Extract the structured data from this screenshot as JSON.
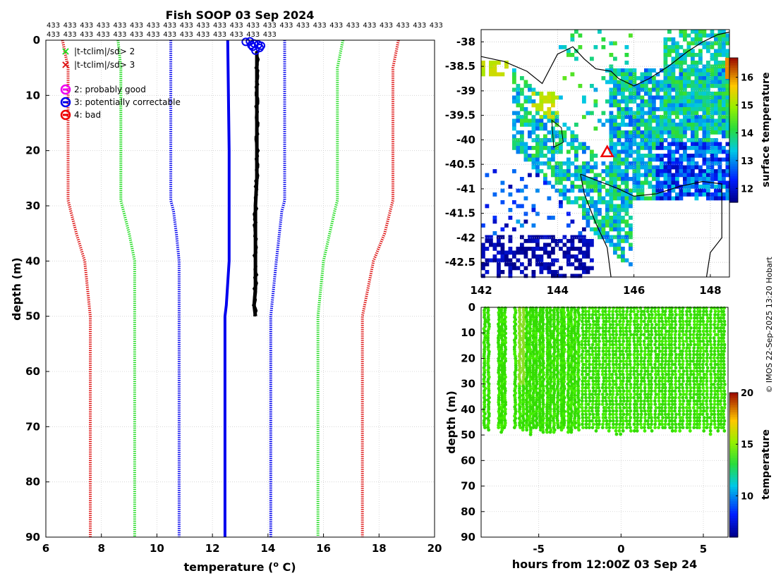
{
  "title": "Fish SOOP 03 Sep 2024",
  "count_rows": [
    [
      "433",
      "433",
      "433",
      "433",
      "433",
      "433",
      "433",
      "433",
      "433",
      "433",
      "433",
      "433",
      "433",
      "433",
      "433",
      "433",
      "433",
      "433",
      "433",
      "433",
      "433",
      "433",
      "433",
      "433"
    ],
    [
      "433",
      "433",
      "433",
      "433",
      "433",
      "433",
      "433",
      "433",
      "433",
      "433",
      "433",
      "433",
      "433",
      "433"
    ]
  ],
  "watermark": "© IMOS 22-Sep-2025 13:20 Hobart",
  "colors": {
    "green_env": "#22dd22",
    "red_env": "#dd1111",
    "blue_env": "#0000ee",
    "profile": "#000000",
    "scatter": "#33ee00"
  },
  "chart_data": [
    {
      "type": "line",
      "name": "temperature profile",
      "title": "Fish SOOP 03 Sep 2024",
      "xlabel": "temperature (",
      "xlabel_sup": "o",
      "xlabel_end": " C)",
      "ylabel": "depth (m)",
      "xlim": [
        6,
        20
      ],
      "ylim": [
        90,
        0
      ],
      "xticks": [
        6,
        8,
        10,
        12,
        14,
        16,
        18,
        20
      ],
      "yticks": [
        0,
        10,
        20,
        30,
        40,
        50,
        60,
        70,
        80,
        90
      ],
      "grid": true,
      "series": [
        {
          "name": "clim -3sd",
          "color": "#dd1111",
          "style": "dotted",
          "depth": [
            0,
            5,
            29,
            31,
            35,
            40,
            50,
            90
          ],
          "temp": [
            6.6,
            6.8,
            6.8,
            6.9,
            7.1,
            7.4,
            7.6,
            7.6
          ]
        },
        {
          "name": "clim -2sd",
          "color": "#22dd22",
          "style": "dotted",
          "depth": [
            0,
            5,
            29,
            31,
            35,
            40,
            50,
            90
          ],
          "temp": [
            8.6,
            8.7,
            8.7,
            8.8,
            9.0,
            9.2,
            9.2,
            9.2
          ]
        },
        {
          "name": "clim -1sd",
          "color": "#0000ee",
          "style": "dotted",
          "depth": [
            0,
            5,
            29,
            31,
            35,
            40,
            50,
            90
          ],
          "temp": [
            10.5,
            10.5,
            10.5,
            10.6,
            10.7,
            10.8,
            10.8,
            10.8
          ]
        },
        {
          "name": "clim mean",
          "color": "#0000ee",
          "style": "solid",
          "depth": [
            0,
            20,
            27,
            30,
            40,
            48,
            50,
            90
          ],
          "temp": [
            12.55,
            12.6,
            12.6,
            12.6,
            12.6,
            12.5,
            12.45,
            12.45
          ]
        },
        {
          "name": "clim +1sd",
          "color": "#0000ee",
          "style": "dotted",
          "depth": [
            0,
            5,
            29,
            31,
            40,
            50,
            90
          ],
          "temp": [
            14.6,
            14.6,
            14.6,
            14.5,
            14.3,
            14.1,
            14.1
          ]
        },
        {
          "name": "clim +2sd",
          "color": "#22dd22",
          "style": "dotted",
          "depth": [
            0,
            5,
            29,
            31,
            40,
            50,
            90
          ],
          "temp": [
            16.7,
            16.5,
            16.5,
            16.4,
            16.0,
            15.8,
            15.8
          ]
        },
        {
          "name": "clim +3sd",
          "color": "#dd1111",
          "style": "dotted",
          "depth": [
            0,
            5,
            29,
            31,
            35,
            40,
            50,
            90
          ],
          "temp": [
            18.7,
            18.5,
            18.5,
            18.4,
            18.2,
            17.8,
            17.4,
            17.4
          ]
        },
        {
          "name": "observed profile",
          "color": "#000000",
          "style": "thick",
          "depth": [
            2,
            10,
            20,
            25,
            30,
            35,
            40,
            45,
            48,
            50
          ],
          "temp": [
            13.6,
            13.6,
            13.6,
            13.6,
            13.55,
            13.55,
            13.55,
            13.55,
            13.5,
            13.55
          ]
        }
      ],
      "flag_markers": {
        "flag": "3: potentially correctable",
        "points": [
          [
            13.2,
            0.3
          ],
          [
            13.35,
            0.2
          ],
          [
            13.5,
            0.6
          ],
          [
            13.65,
            0.8
          ],
          [
            13.45,
            1.2
          ],
          [
            13.7,
            1.4
          ],
          [
            13.55,
            1.9
          ],
          [
            13.4,
            0.9
          ],
          [
            13.75,
            1.0
          ]
        ]
      },
      "legend": {
        "position": "top-left",
        "entries": [
          {
            "label": "|t-tclim|/sd> 2",
            "marker": "x",
            "color": "#22dd22"
          },
          {
            "label": "|t-tclim|/sd> 3",
            "marker": "x",
            "color": "#dd1111"
          },
          {
            "label": "2: probably good",
            "marker": "circle",
            "color": "#ee00ee"
          },
          {
            "label": "3: potentially correctable",
            "marker": "circle",
            "color": "#0000ee"
          },
          {
            "label": "4: bad",
            "marker": "circle",
            "color": "#ee0000"
          }
        ]
      }
    },
    {
      "type": "heatmap",
      "name": "surface temperature map",
      "xlim": [
        142,
        148.5
      ],
      "ylim": [
        -42.8,
        -37.75
      ],
      "xticks": [
        142,
        144,
        146,
        148
      ],
      "yticks": [
        -38,
        -38.5,
        -39,
        -39.5,
        -40,
        -40.5,
        -41,
        -41.5,
        -42,
        -42.5
      ],
      "colorbar_label": "surface temperature",
      "colorbar_ticks": [
        12,
        13,
        14,
        15,
        16
      ],
      "colorbar_range": [
        11.5,
        16.7
      ],
      "marker": {
        "lon": 145.3,
        "lat": -40.25,
        "shape": "triangle",
        "color": "#ee0000"
      }
    },
    {
      "type": "scatter",
      "name": "depth time section",
      "xlabel": "hours from 12:00Z 03 Sep 24",
      "ylabel": "depth (m)",
      "xlim": [
        -8.5,
        6.5
      ],
      "ylim": [
        90,
        0
      ],
      "xticks": [
        -5,
        0,
        5
      ],
      "yticks": [
        0,
        10,
        20,
        30,
        40,
        50,
        60,
        70,
        80,
        90
      ],
      "time_range": [
        -8.3,
        6.3
      ],
      "max_depth": [
        47,
        50
      ],
      "colorbar_label": "temperature",
      "colorbar_ticks": [
        10,
        15,
        20
      ],
      "colorbar_range": [
        6,
        20
      ]
    }
  ]
}
